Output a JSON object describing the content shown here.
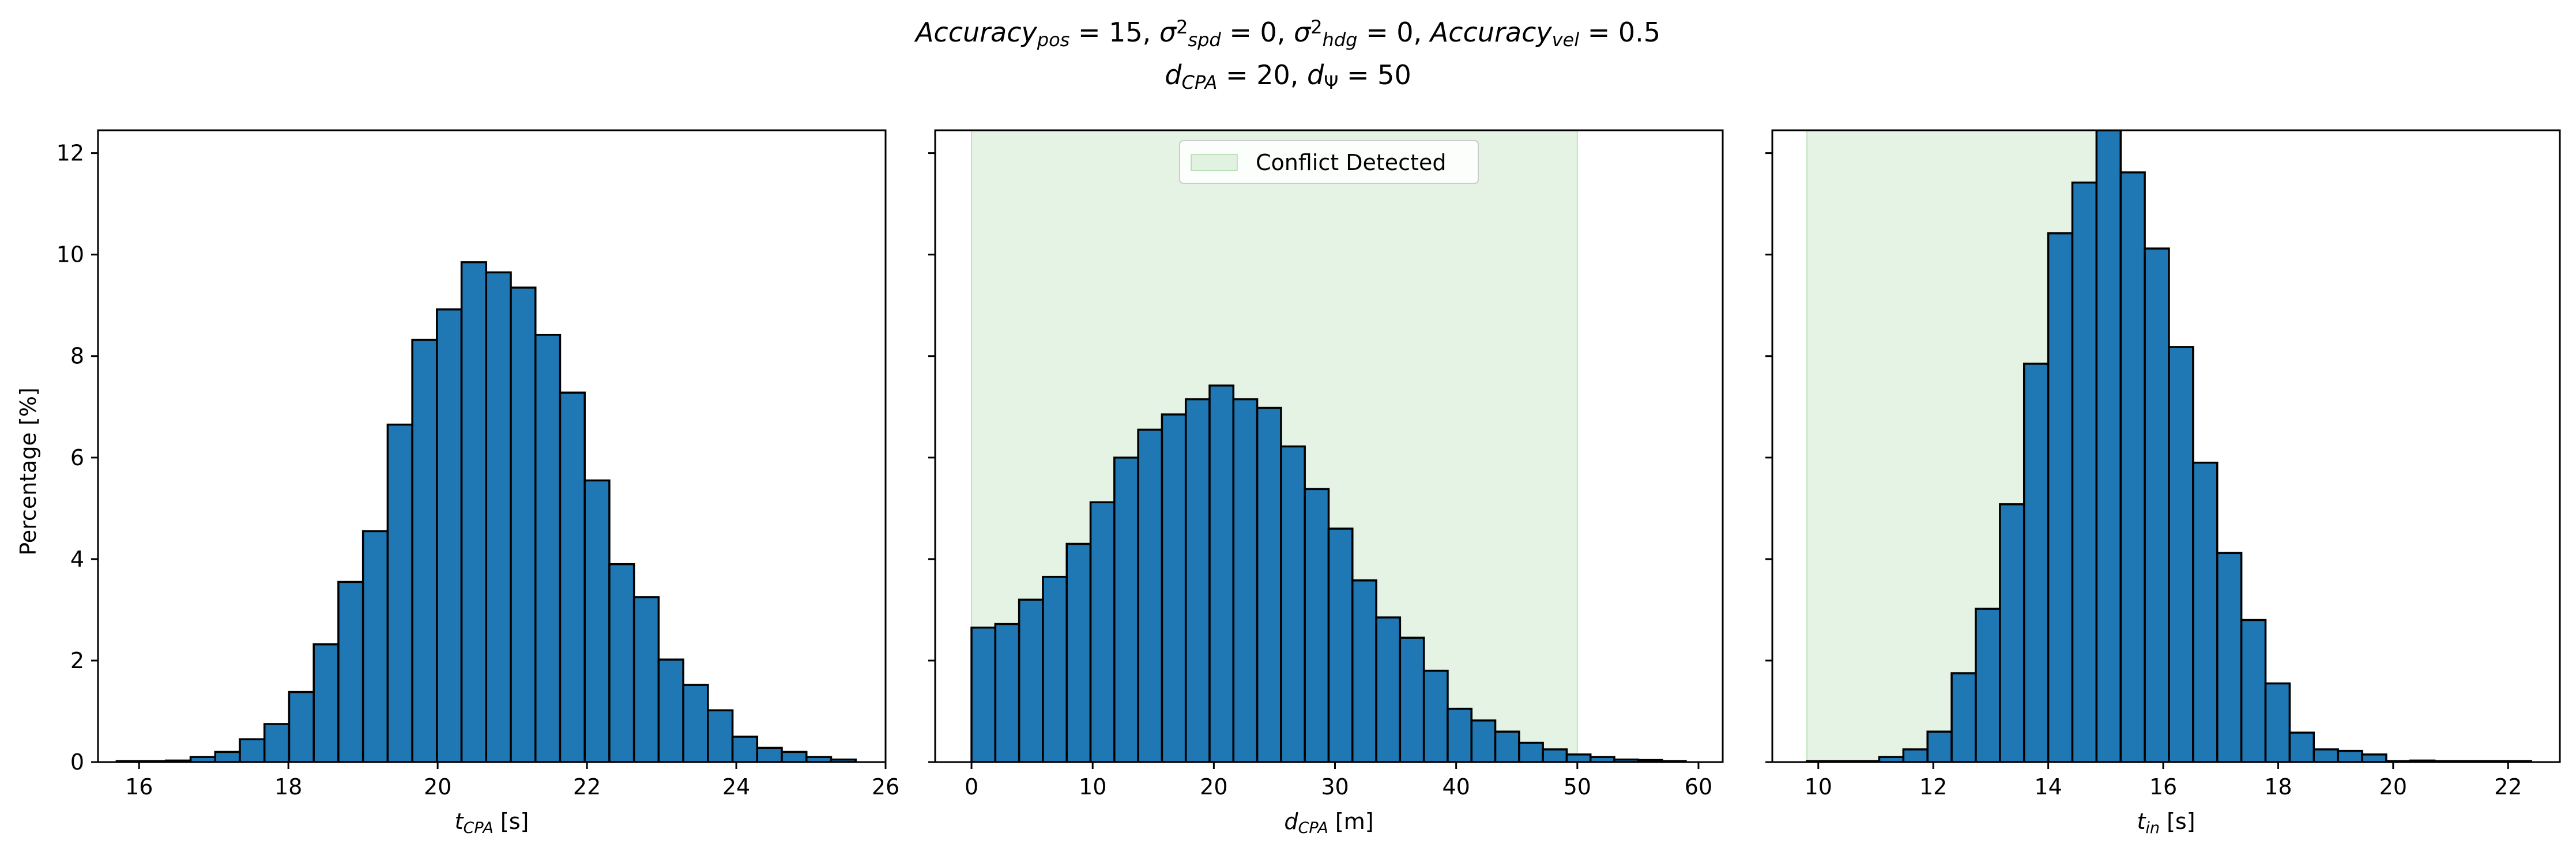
{
  "figure": {
    "title_line1": {
      "parts": [
        {
          "t": "Accuracy",
          "s": "italic"
        },
        {
          "t": "pos",
          "s": "sub-italic"
        },
        {
          "t": " = 15, ",
          "s": "normal"
        },
        {
          "t": "σ",
          "s": "italic"
        },
        {
          "t": "2",
          "s": "sup"
        },
        {
          "t": "spd",
          "s": "sub-italic"
        },
        {
          "t": " = 0, ",
          "s": "normal"
        },
        {
          "t": "σ",
          "s": "italic"
        },
        {
          "t": "2",
          "s": "sup"
        },
        {
          "t": "hdg",
          "s": "sub-italic"
        },
        {
          "t": " = 0, ",
          "s": "normal"
        },
        {
          "t": "Accuracy",
          "s": "italic"
        },
        {
          "t": "vel",
          "s": "sub-italic"
        },
        {
          "t": " = 0.5",
          "s": "normal"
        }
      ]
    },
    "title_line2": {
      "parts": [
        {
          "t": "d",
          "s": "italic"
        },
        {
          "t": "CPA",
          "s": "sub-italic"
        },
        {
          "t": " = 20, ",
          "s": "normal"
        },
        {
          "t": "d",
          "s": "italic"
        },
        {
          "t": "Ψ",
          "s": "sub"
        },
        {
          "t": " = 50",
          "s": "normal"
        }
      ]
    },
    "shared_ylabel": "Percentage [%]",
    "shared_yticks": [
      0,
      2,
      4,
      6,
      8,
      10,
      12
    ],
    "colors": {
      "bar_fill": "#1f77b4",
      "bar_edge": "#000000",
      "shade": "#2ca02c"
    }
  },
  "chart_data": [
    {
      "type": "bar",
      "name": "t_CPA histogram",
      "xlabel_parts": [
        {
          "t": "t",
          "s": "italic"
        },
        {
          "t": "CPA",
          "s": "sub-italic"
        },
        {
          "t": " [s]",
          "s": "normal"
        }
      ],
      "xlim": [
        15.45,
        26.0
      ],
      "ylim": [
        0,
        12.45
      ],
      "xticks": [
        16,
        18,
        20,
        22,
        24,
        26
      ],
      "bin_start": 15.7,
      "bin_width": 0.33,
      "values": [
        0.02,
        0.02,
        0.03,
        0.1,
        0.2,
        0.45,
        0.75,
        1.38,
        2.32,
        3.55,
        4.55,
        6.65,
        8.32,
        8.92,
        9.85,
        9.65,
        9.35,
        8.42,
        7.28,
        5.55,
        3.9,
        3.25,
        2.02,
        1.52,
        1.02,
        0.5,
        0.28,
        0.2,
        0.1,
        0.05
      ],
      "shade": null,
      "legend": null
    },
    {
      "type": "bar",
      "name": "d_CPA histogram",
      "xlabel_parts": [
        {
          "t": "d",
          "s": "italic"
        },
        {
          "t": "CPA",
          "s": "sub-italic"
        },
        {
          "t": " [m]",
          "s": "normal"
        }
      ],
      "xlim": [
        -3.0,
        62.0
      ],
      "ylim": [
        0,
        12.45
      ],
      "xticks": [
        0,
        10,
        20,
        30,
        40,
        50,
        60
      ],
      "bin_start": 0,
      "bin_width": 1.965,
      "values": [
        2.65,
        2.72,
        3.2,
        3.65,
        4.3,
        5.12,
        6.0,
        6.55,
        6.85,
        7.15,
        7.42,
        7.15,
        6.98,
        6.22,
        5.38,
        4.6,
        3.58,
        2.85,
        2.45,
        1.8,
        1.05,
        0.82,
        0.6,
        0.38,
        0.25,
        0.15,
        0.1,
        0.05,
        0.04,
        0.02
      ],
      "shade": {
        "from": 0,
        "to": 50
      },
      "legend": {
        "label": "Conflict Detected",
        "placement": "upper center"
      }
    },
    {
      "type": "bar",
      "name": "t_in histogram",
      "xlabel_parts": [
        {
          "t": "t",
          "s": "italic"
        },
        {
          "t": "in",
          "s": "sub-italic"
        },
        {
          "t": " [s]",
          "s": "normal"
        }
      ],
      "xlim": [
        9.2,
        22.9
      ],
      "ylim": [
        0,
        12.45
      ],
      "xticks": [
        10,
        12,
        14,
        16,
        18,
        20,
        22
      ],
      "bin_start": 9.8,
      "bin_width": 0.42,
      "values": [
        0.02,
        0.02,
        0.02,
        0.1,
        0.25,
        0.6,
        1.75,
        3.02,
        5.08,
        7.85,
        10.42,
        11.42,
        12.45,
        11.62,
        10.12,
        8.18,
        5.9,
        4.12,
        2.8,
        1.55,
        0.58,
        0.25,
        0.22,
        0.15,
        0.02,
        0.03,
        0.02,
        0.02,
        0.02,
        0.02
      ],
      "shade": {
        "from": 9.8,
        "to": 15.0
      },
      "legend": null
    }
  ]
}
